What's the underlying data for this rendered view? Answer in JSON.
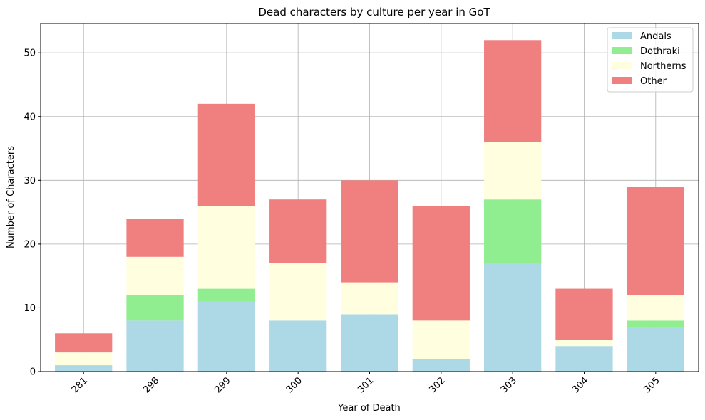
{
  "chart_data": {
    "type": "bar",
    "stacked": true,
    "title": "Dead characters by culture per year in GoT",
    "xlabel": "Year of Death",
    "ylabel": "Number of Characters",
    "categories": [
      "281",
      "298",
      "299",
      "300",
      "301",
      "302",
      "303",
      "304",
      "305"
    ],
    "series": [
      {
        "name": "Andals",
        "color": "#add8e6",
        "values": [
          1,
          8,
          11,
          8,
          9,
          2,
          17,
          4,
          7
        ]
      },
      {
        "name": "Dothraki",
        "color": "#90ee90",
        "values": [
          0,
          4,
          2,
          0,
          0,
          0,
          10,
          0,
          1
        ]
      },
      {
        "name": "Northerns",
        "color": "#ffffe0",
        "values": [
          2,
          6,
          13,
          9,
          5,
          6,
          9,
          1,
          4
        ]
      },
      {
        "name": "Other",
        "color": "#f08080",
        "values": [
          3,
          6,
          16,
          10,
          16,
          18,
          16,
          8,
          17
        ]
      }
    ],
    "ylim": [
      0,
      54.6
    ],
    "yticks": [
      0,
      10,
      20,
      30,
      40,
      50
    ],
    "grid": true,
    "legend": "top-right",
    "xtick_rotation": 45
  }
}
